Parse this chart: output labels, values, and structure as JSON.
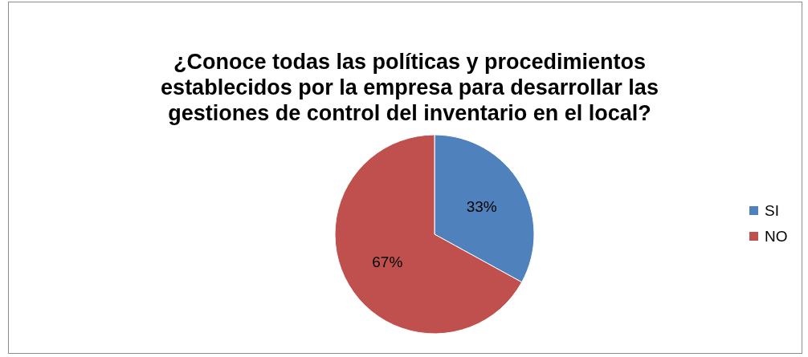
{
  "chart_data": {
    "type": "pie",
    "title": "¿Conoce todas las políticas y procedimientos establecidos por la empresa para desarrollar las gestiones de control del inventario en el local?",
    "categories": [
      "SI",
      "NO"
    ],
    "values": [
      33,
      67
    ],
    "colors": [
      "#4f81bd",
      "#c0504d"
    ],
    "value_labels": [
      "33%",
      "67%"
    ],
    "legend": "right"
  }
}
